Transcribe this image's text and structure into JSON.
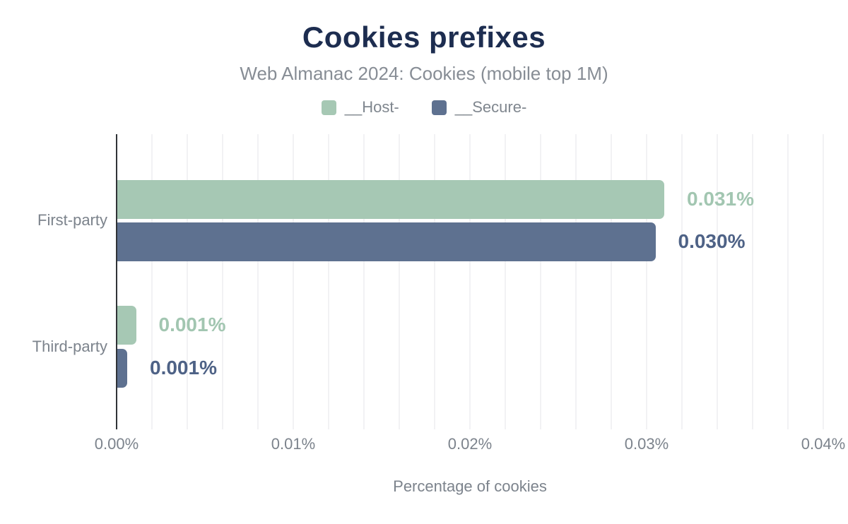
{
  "title": "Cookies prefixes",
  "subtitle": "Web Almanac 2024: Cookies (mobile top 1M)",
  "colors": {
    "background": "#ffffff",
    "title_text": "#1d2d50",
    "subtitle_text": "#878d95",
    "axis_text": "#7c838c",
    "axis_line": "#303337",
    "grid_line": "#f2f2f4",
    "host_green": "#a6c8b4",
    "secure_slate": "#5e7190"
  },
  "chart_data": {
    "type": "bar",
    "orientation": "horizontal",
    "title": "Cookies prefixes",
    "subtitle": "Web Almanac 2024: Cookies (mobile top 1M)",
    "categories": [
      "First-party",
      "Third-party"
    ],
    "series": [
      {
        "name": "__Host-",
        "color": "#a6c8b4",
        "label_color": "#a2c6b1",
        "values": [
          0.031,
          0.001
        ],
        "values_precise": [
          0.031,
          0.0011
        ],
        "labels": [
          "0.031%",
          "0.001%"
        ]
      },
      {
        "name": "__Secure-",
        "color": "#5e7190",
        "label_color": "#4e6286",
        "values": [
          0.03,
          0.001
        ],
        "values_precise": [
          0.0305,
          0.0006
        ],
        "labels": [
          "0.030%",
          "0.001%"
        ]
      }
    ],
    "xlabel": "Percentage of cookies",
    "ylabel": "",
    "xlim": [
      0,
      0.04
    ],
    "xticks": [
      0,
      0.01,
      0.02,
      0.03,
      0.04
    ],
    "xtick_labels": [
      "0.00%",
      "0.01%",
      "0.02%",
      "0.03%",
      "0.04%"
    ],
    "grid": {
      "axis": "x",
      "step": 0.002
    },
    "legend_position": "top"
  }
}
